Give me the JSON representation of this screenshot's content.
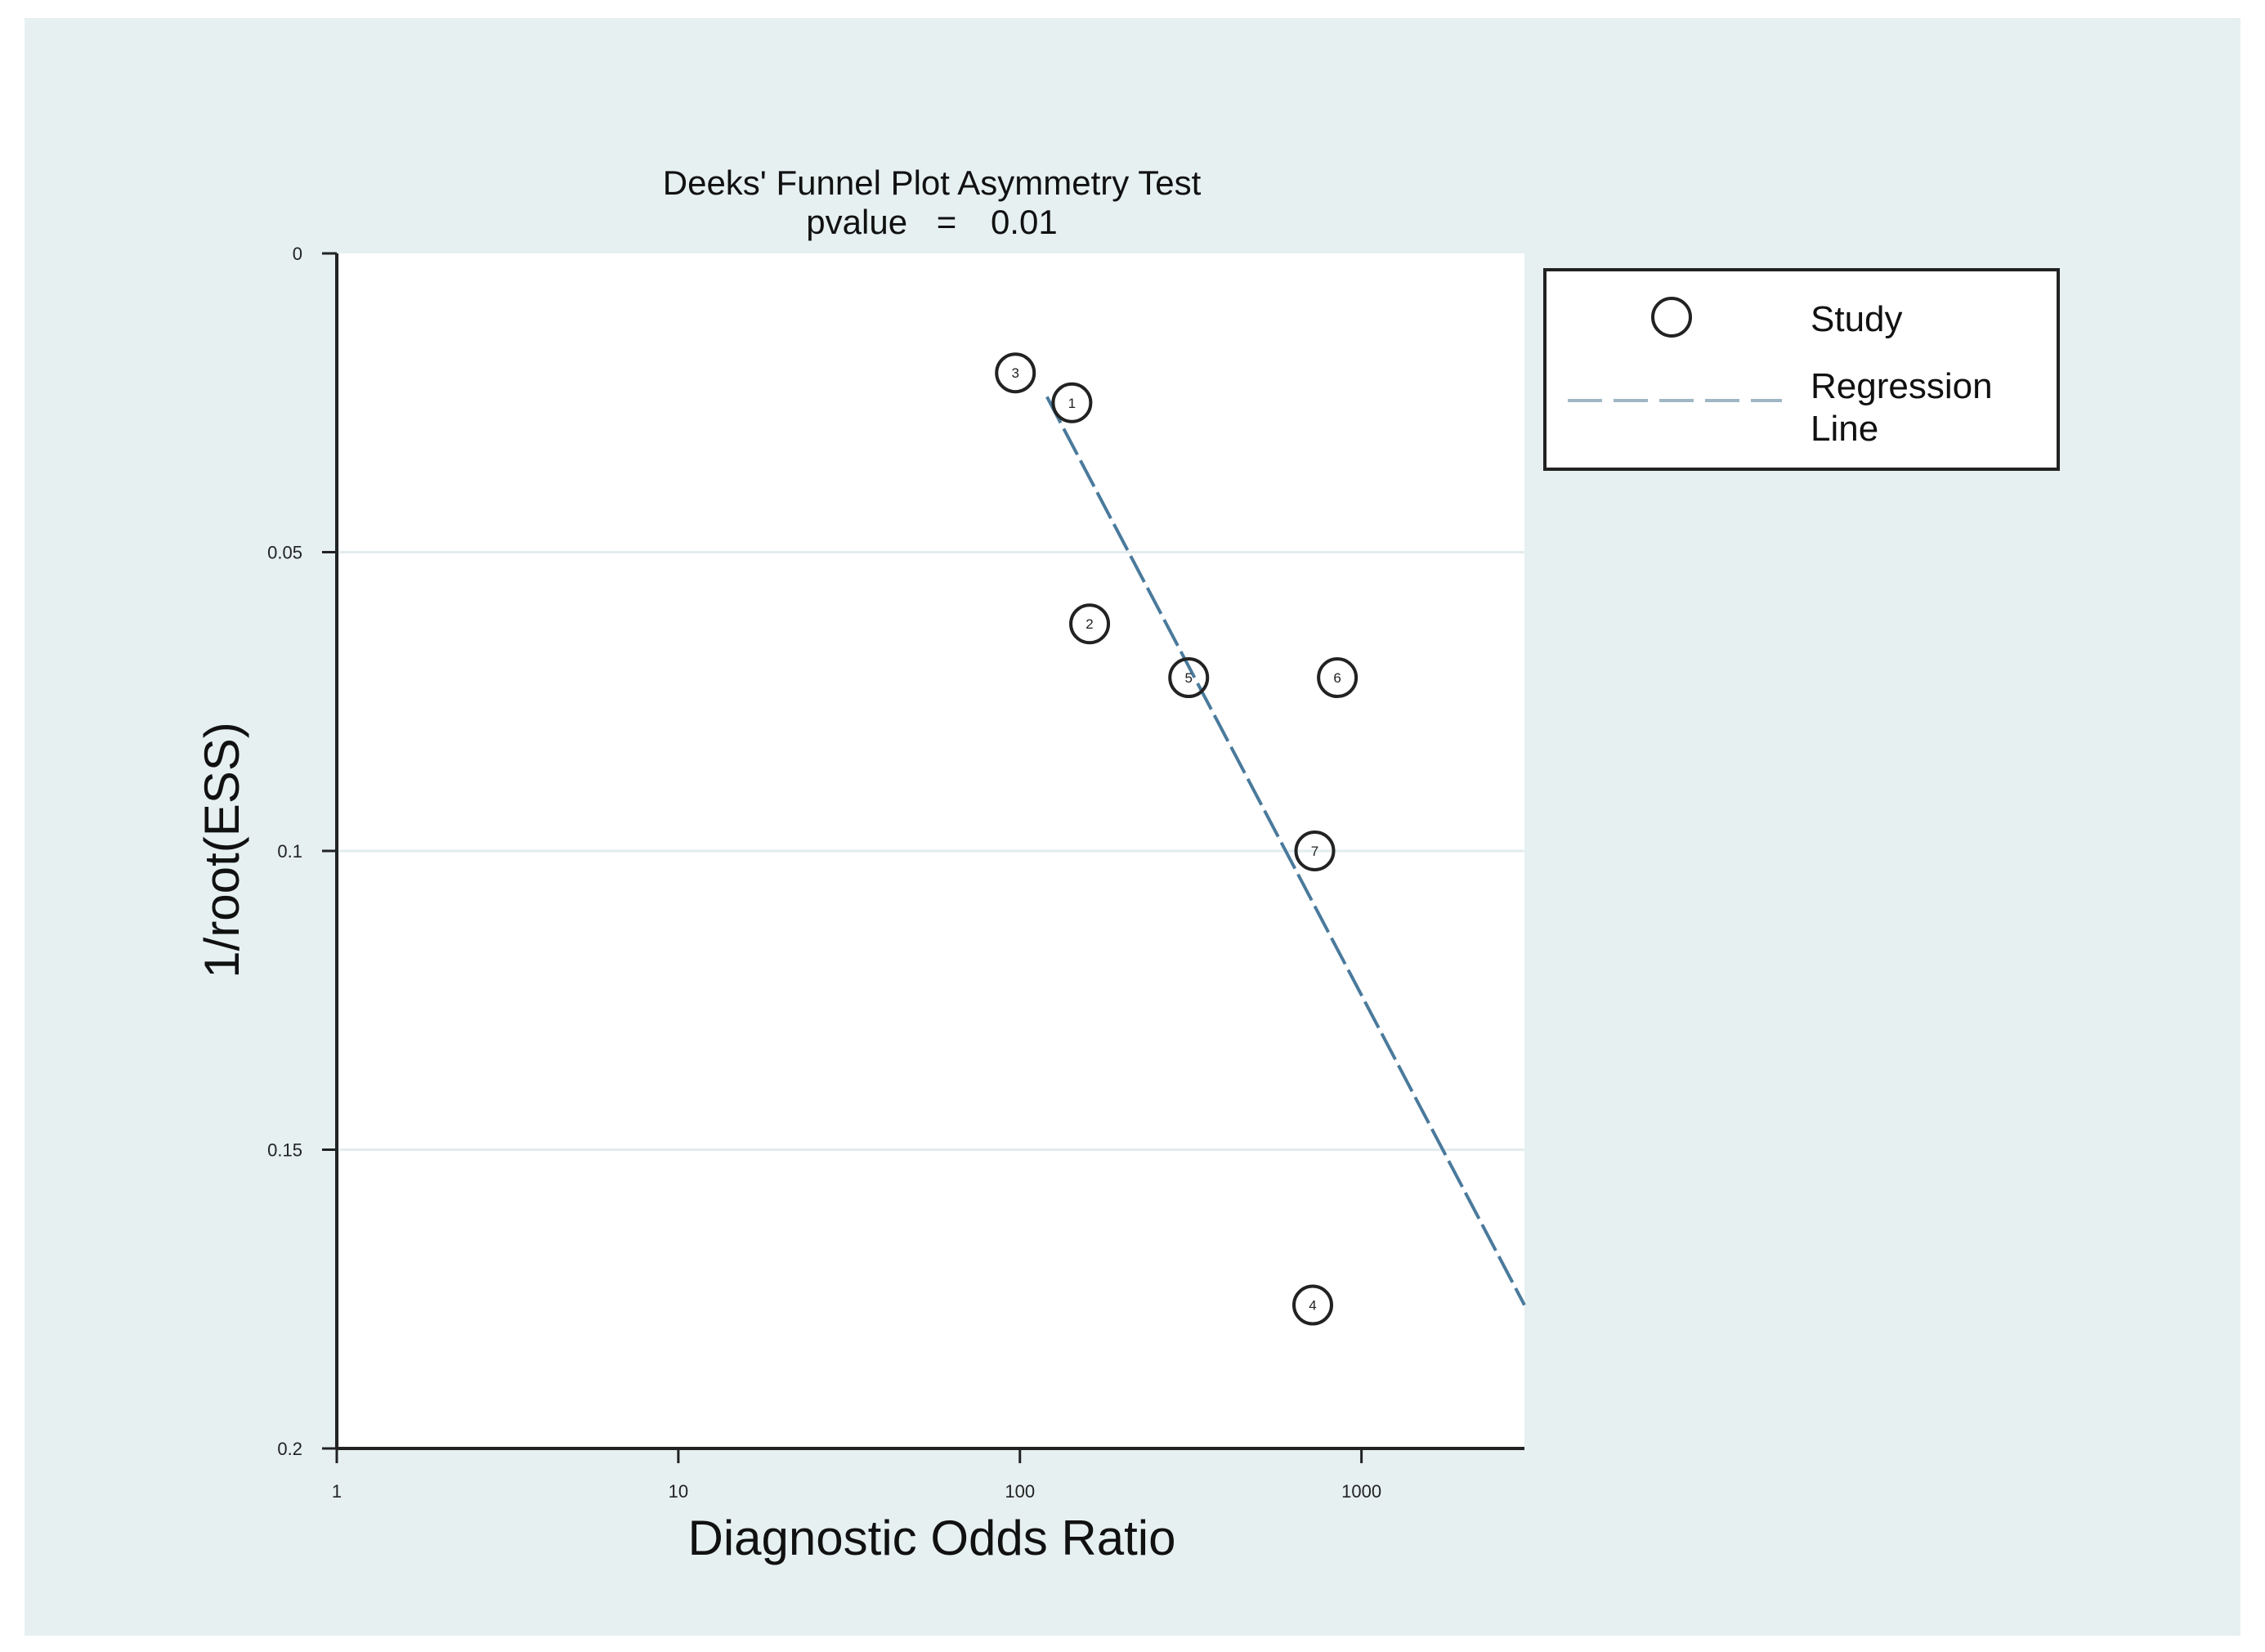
{
  "colors": {
    "page_bg": "#e6f0f1",
    "plot_bg": "#ffffff",
    "grid": "#e3ecee",
    "axis": "#222222",
    "regression": "#4a7a9c",
    "marker": "#222222"
  },
  "chart_data": {
    "type": "scatter",
    "title": "Deeks' Funnel Plot Asymmetry Test",
    "subtitle_label": "pvalue",
    "subtitle_eq": "=",
    "subtitle_value": "0.01",
    "xlabel": "Diagnostic Odds Ratio",
    "ylabel": "1/root(ESS)",
    "x_scale": "log",
    "xlim": [
      1,
      3000
    ],
    "ylim": [
      0,
      0.2
    ],
    "y_reversed": true,
    "x_ticks": [
      {
        "value": 1,
        "label": "1"
      },
      {
        "value": 10,
        "label": "10"
      },
      {
        "value": 100,
        "label": "100"
      },
      {
        "value": 1000,
        "label": "1000"
      }
    ],
    "y_ticks": [
      {
        "value": 0,
        "label": "0"
      },
      {
        "value": 0.05,
        "label": "0.05"
      },
      {
        "value": 0.1,
        "label": "0.1"
      },
      {
        "value": 0.15,
        "label": "0.15"
      },
      {
        "value": 0.2,
        "label": "0.2"
      }
    ],
    "grid": true,
    "points": [
      {
        "id": "3",
        "x": 97,
        "y": 0.02
      },
      {
        "id": "1",
        "x": 142,
        "y": 0.025
      },
      {
        "id": "2",
        "x": 160,
        "y": 0.062
      },
      {
        "id": "5",
        "x": 312,
        "y": 0.071
      },
      {
        "id": "6",
        "x": 850,
        "y": 0.071
      },
      {
        "id": "7",
        "x": 730,
        "y": 0.1
      },
      {
        "id": "4",
        "x": 720,
        "y": 0.176
      }
    ],
    "regression_line": {
      "x": [
        120,
        3000
      ],
      "y": [
        0.024,
        0.176
      ]
    },
    "legend": {
      "position": "right",
      "entries": [
        {
          "label": "Study",
          "kind": "marker"
        },
        {
          "label_line1": "Regression",
          "label_line2": "Line",
          "kind": "dashed-line"
        }
      ]
    }
  }
}
